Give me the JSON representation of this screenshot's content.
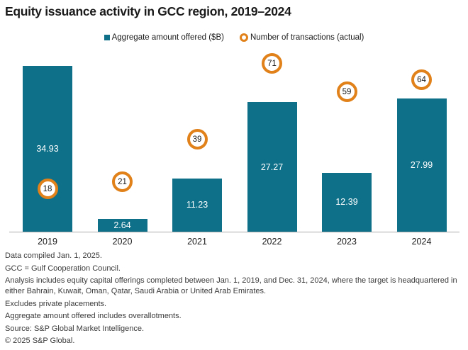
{
  "chart_data": {
    "type": "bar",
    "title": "Equity issuance activity in GCC region, 2019–2024",
    "categories": [
      "2019",
      "2020",
      "2021",
      "2022",
      "2023",
      "2024"
    ],
    "series": [
      {
        "name": "Aggregate amount offered ($B)",
        "type": "bar",
        "color": "#0f7089",
        "values": [
          34.93,
          2.64,
          11.23,
          27.27,
          12.39,
          27.99
        ],
        "labels": [
          "34.93",
          "2.64",
          "11.23",
          "27.27",
          "12.39",
          "27.99"
        ]
      },
      {
        "name": "Number of transactions (actual)",
        "type": "scatter",
        "marker": "ring",
        "color": "#e08119",
        "values": [
          18,
          21,
          39,
          71,
          59,
          64
        ]
      }
    ],
    "legend_position": "top-center",
    "grid": false,
    "bar_axis_range": [
      0,
      35
    ],
    "marker_axis_range": [
      0,
      80
    ],
    "xlabel": "",
    "ylabel": ""
  },
  "footer": {
    "lines": [
      "Data compiled Jan. 1, 2025.",
      "GCC = Gulf Cooperation Council.",
      "Analysis includes equity capital offerings completed between Jan. 1, 2019, and Dec. 31, 2024, where the target is headquartered in either Bahrain, Kuwait, Oman, Qatar, Saudi Arabia or United Arab Emirates.",
      "Excludes private placements.",
      "Aggregate amount offered includes overallotments.",
      "Source: S&P Global Market Intelligence.",
      "© 2025 S&P Global."
    ]
  },
  "colors": {
    "bar_teal": "#0f7089",
    "ring_orange": "#e08119",
    "axis_gray": "#a9a9a9",
    "text_dark": "#1a1a1a",
    "footnote_gray": "#3a3a3a"
  }
}
